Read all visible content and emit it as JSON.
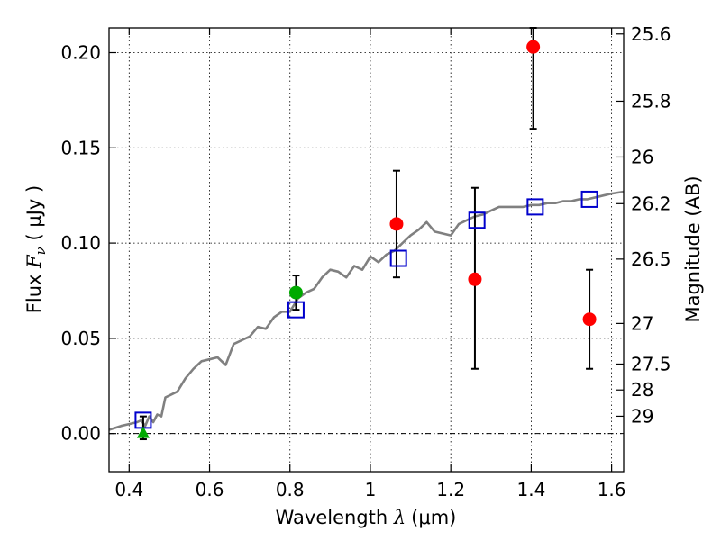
{
  "chart_data": {
    "type": "scatter",
    "xlabel_prefix": "Wavelength  ",
    "xlabel_symbol": "λ",
    "xlabel_unit": "(μm)",
    "ylabel_prefix": "Flux  ",
    "ylabel_symbol": "F",
    "ylabel_subscript": "ν",
    "ylabel_unit": " ( μJy )",
    "y2label": "Magnitude (AB)",
    "xlim": [
      0.35,
      1.63
    ],
    "ylim": [
      -0.02,
      0.213
    ],
    "grid": true,
    "xticks": [
      0.4,
      0.6,
      0.8,
      1.0,
      1.2,
      1.4,
      1.6
    ],
    "xtick_labels": [
      "0.4",
      "0.6",
      "0.8",
      "1",
      "1.2",
      "1.4",
      "1.6"
    ],
    "yticks": [
      0.0,
      0.05,
      0.1,
      0.15,
      0.2
    ],
    "ytick_labels": [
      "0.00",
      "0.05",
      "0.10",
      "0.15",
      "0.20"
    ],
    "y2ticks": [
      {
        "label": "25.6",
        "flux": 0.2098
      },
      {
        "label": "25.8",
        "flux": 0.1745
      },
      {
        "label": "26",
        "flux": 0.1452
      },
      {
        "label": "26.2",
        "flux": 0.1207
      },
      {
        "label": "26.5",
        "flux": 0.0916
      },
      {
        "label": "27",
        "flux": 0.0578
      },
      {
        "label": "27.5",
        "flux": 0.0365
      },
      {
        "label": "28",
        "flux": 0.0229
      },
      {
        "label": "29",
        "flux": 0.0091
      }
    ],
    "colors": {
      "detections": "#ff0000",
      "green": "#00aa00",
      "model": "#0000cc",
      "template": "#808080"
    },
    "template_spectrum": {
      "x": [
        0.35,
        0.38,
        0.4,
        0.42,
        0.43,
        0.44,
        0.45,
        0.46,
        0.47,
        0.48,
        0.49,
        0.5,
        0.52,
        0.54,
        0.56,
        0.58,
        0.6,
        0.62,
        0.64,
        0.66,
        0.68,
        0.7,
        0.72,
        0.74,
        0.76,
        0.78,
        0.8,
        0.82,
        0.84,
        0.86,
        0.88,
        0.9,
        0.92,
        0.94,
        0.96,
        0.98,
        1.0,
        1.02,
        1.04,
        1.06,
        1.08,
        1.1,
        1.12,
        1.14,
        1.16,
        1.18,
        1.2,
        1.22,
        1.24,
        1.26,
        1.28,
        1.3,
        1.32,
        1.34,
        1.36,
        1.38,
        1.4,
        1.42,
        1.44,
        1.46,
        1.48,
        1.5,
        1.52,
        1.54,
        1.56,
        1.58,
        1.6,
        1.63
      ],
      "y": [
        0.002,
        0.004,
        0.005,
        0.006,
        0.007,
        0.004,
        0.009,
        0.006,
        0.01,
        0.009,
        0.019,
        0.02,
        0.022,
        0.029,
        0.034,
        0.038,
        0.039,
        0.04,
        0.036,
        0.047,
        0.049,
        0.051,
        0.056,
        0.055,
        0.061,
        0.064,
        0.064,
        0.071,
        0.074,
        0.076,
        0.082,
        0.086,
        0.085,
        0.082,
        0.088,
        0.086,
        0.093,
        0.09,
        0.094,
        0.096,
        0.1,
        0.104,
        0.107,
        0.111,
        0.106,
        0.105,
        0.104,
        0.11,
        0.112,
        0.114,
        0.115,
        0.117,
        0.119,
        0.119,
        0.119,
        0.119,
        0.12,
        0.12,
        0.121,
        0.121,
        0.122,
        0.122,
        0.123,
        0.123,
        0.124,
        0.125,
        0.126,
        0.127
      ]
    },
    "model_points": [
      {
        "x": 0.435,
        "y": 0.007
      },
      {
        "x": 0.815,
        "y": 0.065
      },
      {
        "x": 1.07,
        "y": 0.092
      },
      {
        "x": 1.265,
        "y": 0.112
      },
      {
        "x": 1.41,
        "y": 0.119
      },
      {
        "x": 1.545,
        "y": 0.123
      }
    ],
    "detections": [
      {
        "x": 1.065,
        "y": 0.11,
        "ylow": 0.082,
        "yhigh": 0.138,
        "color": "red"
      },
      {
        "x": 1.26,
        "y": 0.081,
        "ylow": 0.034,
        "yhigh": 0.129,
        "color": "red"
      },
      {
        "x": 1.405,
        "y": 0.203,
        "ylow": 0.16,
        "yhigh": 0.213,
        "color": "red"
      },
      {
        "x": 1.545,
        "y": 0.06,
        "ylow": 0.034,
        "yhigh": 0.086,
        "color": "red"
      },
      {
        "x": 0.815,
        "y": 0.074,
        "ylow": 0.065,
        "yhigh": 0.083,
        "color": "green"
      }
    ],
    "upper_limits": [
      {
        "x": 0.435,
        "y": 0.0,
        "ylow": -0.003,
        "yhigh": 0.009,
        "color": "green",
        "marker": "triangle"
      }
    ]
  }
}
